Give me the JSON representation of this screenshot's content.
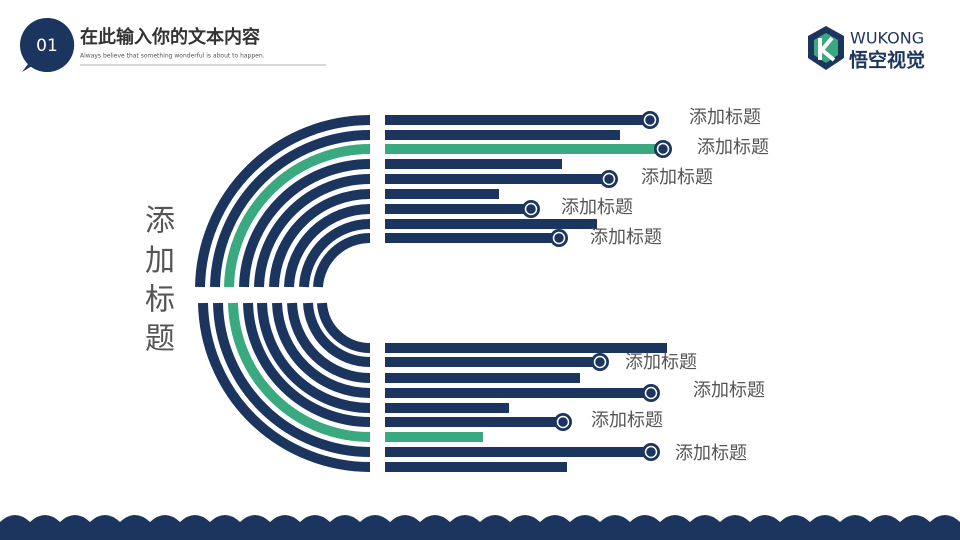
{
  "header": {
    "number": "01",
    "title": "在此输入你的文本内容",
    "subtitle": "Always believe that something wonderful is about to happen."
  },
  "logo": {
    "brand": "WUKONG",
    "name": "悟空视觉"
  },
  "side_title": [
    "添",
    "加",
    "标",
    "题"
  ],
  "labels": [
    "添加标题",
    "添加标题",
    "添加标题",
    "添加标题",
    "添加标题",
    "添加标题",
    "添加标题",
    "添加标题",
    "添加标题"
  ]
}
